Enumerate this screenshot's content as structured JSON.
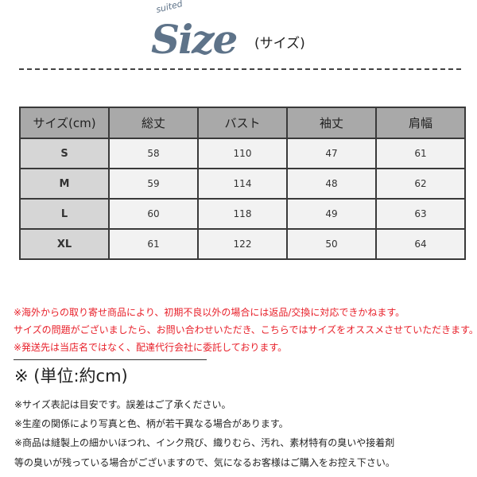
{
  "header": {
    "logo_script": "suited",
    "logo_text": "Size",
    "subtitle": "(サイズ)",
    "logo_color": "#5e7389"
  },
  "table": {
    "columns": [
      "サイズ(cm)",
      "総丈",
      "バスト",
      "袖丈",
      "肩幅"
    ],
    "rows": [
      [
        "S",
        "58",
        "110",
        "47",
        "61"
      ],
      [
        "M",
        "59",
        "114",
        "48",
        "62"
      ],
      [
        "L",
        "60",
        "118",
        "49",
        "63"
      ],
      [
        "XL",
        "61",
        "122",
        "50",
        "64"
      ]
    ]
  },
  "warnings": [
    "※海外からの取り寄せ商品により、初期不良以外の場合には返品/交換に対応できかねます。",
    "サイズの問題がございましたら、お問い合わせいただき、こちらではサイズをオススメさせていただきます。",
    "※発送先は当店名ではなく、配達代行会社に委託しております。"
  ],
  "warning_color": "#e8202a",
  "unit_label": "※ (単位:約cm)",
  "notes": [
    "※サイズ表記は目安です。誤差はご了承ください。",
    "※生産の関係により写真と色、柄が若干異なる場合があります。",
    "※商品は縫製上の細かいほつれ、インク飛び、織りむら、汚れ、素材特有の臭いや接着剤",
    "等の臭いが残っている場合がございますので、気になるお客様はご購入をお控え下さい。"
  ]
}
